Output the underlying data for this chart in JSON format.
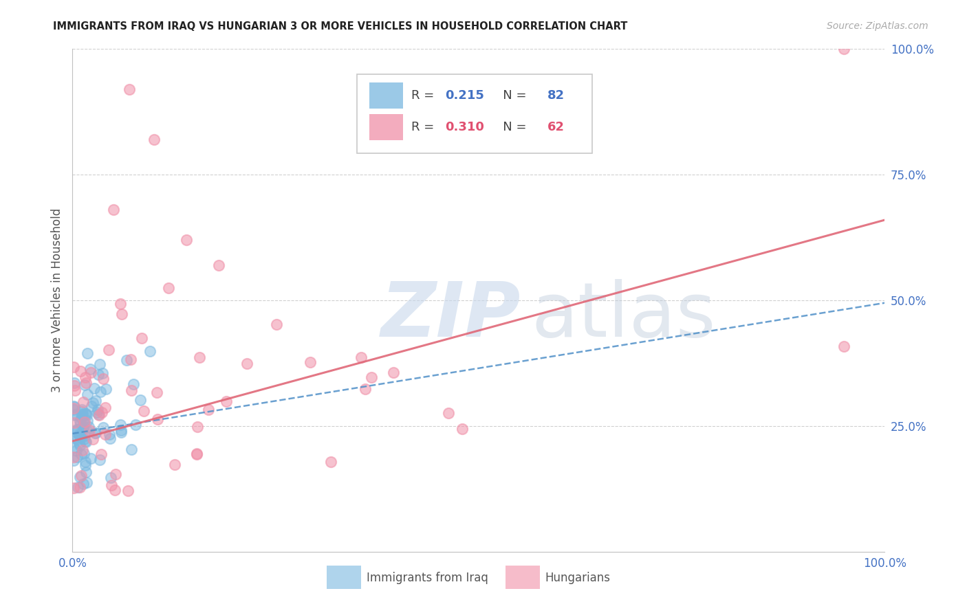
{
  "title": "IMMIGRANTS FROM IRAQ VS HUNGARIAN 3 OR MORE VEHICLES IN HOUSEHOLD CORRELATION CHART",
  "source": "Source: ZipAtlas.com",
  "ylabel": "3 or more Vehicles in Household",
  "xlim": [
    0,
    1.0
  ],
  "ylim": [
    0,
    1.0
  ],
  "background_color": "#ffffff",
  "scatter_size": 120,
  "iraq_color": "#7ab8e0",
  "hungarian_color": "#f090a8",
  "iraq_line_color": "#5090c8",
  "hungarian_line_color": "#e06878",
  "right_axis_color": "#4472c4",
  "grid_color": "#d0d0d0",
  "iraq_R": 0.215,
  "iraq_N": 82,
  "hung_R": 0.31,
  "hung_N": 62,
  "iraq_line_intercept": 0.235,
  "iraq_line_slope": 0.26,
  "hung_line_intercept": 0.22,
  "hung_line_slope": 0.44
}
